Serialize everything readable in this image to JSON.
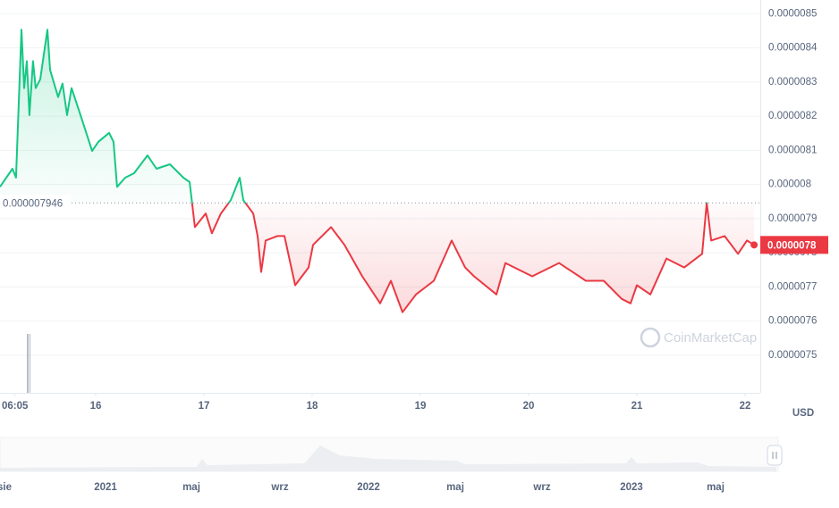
{
  "chart_data": {
    "type": "line",
    "x": [
      15.116,
      15.231,
      15.264,
      15.314,
      15.339,
      15.364,
      15.388,
      15.421,
      15.446,
      15.488,
      15.554,
      15.579,
      15.653,
      15.694,
      15.736,
      15.777,
      15.86,
      15.967,
      16.025,
      16.124,
      16.165,
      16.198,
      16.273,
      16.355,
      16.479,
      16.562,
      16.686,
      16.81,
      16.868,
      16.917,
      17.017,
      17.074,
      17.157,
      17.248,
      17.331,
      17.364,
      17.455,
      17.496,
      17.529,
      17.57,
      17.678,
      17.744,
      17.843,
      17.967,
      18.008,
      18.174,
      18.298,
      18.463,
      18.628,
      18.727,
      18.835,
      18.959,
      19.124,
      19.289,
      19.413,
      19.496,
      19.702,
      19.785,
      20.033,
      20.281,
      20.529,
      20.694,
      20.86,
      20.942,
      21.0,
      21.124,
      21.273,
      21.438,
      21.603,
      21.645,
      21.686,
      21.81,
      21.934,
      22.017,
      22.083
    ],
    "series": [
      {
        "name": "Price",
        "values": [
          7.993e-06,
          8.046e-06,
          8.02e-06,
          8.453e-06,
          8.282e-06,
          8.361e-06,
          8.203e-06,
          8.361e-06,
          8.282e-06,
          8.308e-06,
          8.453e-06,
          8.335e-06,
          8.256e-06,
          8.295e-06,
          8.203e-06,
          8.282e-06,
          8.203e-06,
          8.098e-06,
          8.125e-06,
          8.151e-06,
          8.125e-06,
          7.993e-06,
          8.02e-06,
          8.033e-06,
          8.085e-06,
          8.046e-06,
          8.059e-06,
          8.02e-06,
          8.007e-06,
          7.875e-06,
          7.915e-06,
          7.857e-06,
          7.915e-06,
          7.954e-06,
          8.02e-06,
          7.954e-06,
          7.915e-06,
          7.849e-06,
          7.744e-06,
          7.836e-06,
          7.849e-06,
          7.849e-06,
          7.705e-06,
          7.757e-06,
          7.823e-06,
          7.875e-06,
          7.823e-06,
          7.731e-06,
          7.652e-06,
          7.718e-06,
          7.626e-06,
          7.678e-06,
          7.718e-06,
          7.836e-06,
          7.757e-06,
          7.731e-06,
          7.678e-06,
          7.77e-06,
          7.731e-06,
          7.77e-06,
          7.718e-06,
          7.718e-06,
          7.665e-06,
          7.652e-06,
          7.705e-06,
          7.678e-06,
          7.783e-06,
          7.757e-06,
          7.797e-06,
          7.946e-06,
          7.836e-06,
          7.849e-06,
          7.797e-06,
          7.836e-06,
          7.823e-06
        ]
      }
    ],
    "colors": {
      "up": "#16c784",
      "down": "#ea3943"
    },
    "reference_value": 7.946e-06,
    "current": {
      "value": 7.823e-06,
      "label": "0.0000078"
    },
    "xlim": [
      15.116,
      22.14
    ],
    "xticks": [
      {
        "value": 15.254,
        "label": "06:05"
      },
      16,
      17,
      18,
      19,
      20,
      21,
      22
    ],
    "ylim": [
      7.39e-06,
      8.54e-06
    ],
    "yticks": [
      7.5e-06,
      7.6e-06,
      7.7e-06,
      7.8e-06,
      7.9e-06,
      8e-06,
      8.1e-06,
      8.2e-06,
      8.3e-06,
      8.4e-06,
      8.5e-06
    ],
    "currency": "USD",
    "watermark": "CoinMarketCap",
    "grid": true,
    "navigator": {
      "labels": [
        "sie",
        "2021",
        "maj",
        "wrz",
        "2022",
        "maj",
        "wrz",
        "2023",
        "maj"
      ]
    }
  }
}
